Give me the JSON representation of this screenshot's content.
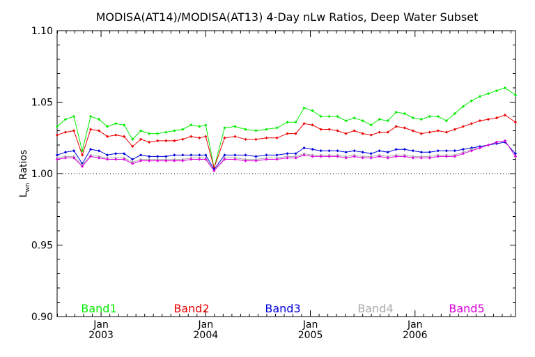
{
  "chart_data": {
    "type": "line",
    "title": "MODISA(AT14)/MODISA(AT13) 4-Day nLw Ratios, Deep Water Subset",
    "ylabel_main": "L",
    "ylabel_sub": "wn",
    "ylabel_rest": " Ratios",
    "ylim": [
      0.9,
      1.1
    ],
    "yticks": [
      "0.90",
      "0.95",
      "1.00",
      "1.05",
      "1.10"
    ],
    "xlim": [
      2002.58,
      2006.96
    ],
    "xticks": [
      {
        "x": 2003.0,
        "month": "Jan",
        "year": "2003"
      },
      {
        "x": 2004.0,
        "month": "Jan",
        "year": "2004"
      },
      {
        "x": 2005.0,
        "month": "Jan",
        "year": "2005"
      },
      {
        "x": 2006.0,
        "month": "Jan",
        "year": "2006"
      }
    ],
    "reference_line": 1.0,
    "grid": false,
    "legend_position": "bottom",
    "x": [
      2002.58,
      2002.66,
      2002.74,
      2002.82,
      2002.9,
      2002.98,
      2003.06,
      2003.14,
      2003.22,
      2003.3,
      2003.38,
      2003.46,
      2003.54,
      2003.62,
      2003.7,
      2003.78,
      2003.86,
      2003.94,
      2004.0,
      2004.08,
      2004.18,
      2004.28,
      2004.38,
      2004.48,
      2004.58,
      2004.68,
      2004.78,
      2004.86,
      2004.94,
      2005.02,
      2005.1,
      2005.18,
      2005.26,
      2005.34,
      2005.42,
      2005.5,
      2005.58,
      2005.66,
      2005.74,
      2005.82,
      2005.9,
      2005.98,
      2006.06,
      2006.14,
      2006.22,
      2006.3,
      2006.38,
      2006.46,
      2006.54,
      2006.62,
      2006.7,
      2006.78,
      2006.86,
      2006.96
    ],
    "series": [
      {
        "name": "Band1",
        "color": "#00ee00",
        "values": [
          1.033,
          1.038,
          1.04,
          1.016,
          1.04,
          1.038,
          1.033,
          1.035,
          1.034,
          1.024,
          1.03,
          1.028,
          1.028,
          1.029,
          1.03,
          1.031,
          1.034,
          1.033,
          1.034,
          1.004,
          1.032,
          1.033,
          1.031,
          1.03,
          1.031,
          1.032,
          1.036,
          1.036,
          1.046,
          1.044,
          1.04,
          1.04,
          1.04,
          1.037,
          1.039,
          1.037,
          1.034,
          1.038,
          1.037,
          1.043,
          1.042,
          1.039,
          1.038,
          1.04,
          1.04,
          1.037,
          1.042,
          1.047,
          1.051,
          1.054,
          1.056,
          1.058,
          1.06,
          1.055
        ]
      },
      {
        "name": "Band2",
        "color": "#ee0000",
        "values": [
          1.027,
          1.029,
          1.03,
          1.013,
          1.031,
          1.03,
          1.026,
          1.027,
          1.026,
          1.019,
          1.024,
          1.022,
          1.023,
          1.023,
          1.023,
          1.024,
          1.026,
          1.025,
          1.026,
          1.004,
          1.025,
          1.026,
          1.024,
          1.024,
          1.025,
          1.025,
          1.028,
          1.028,
          1.035,
          1.034,
          1.031,
          1.031,
          1.03,
          1.028,
          1.03,
          1.028,
          1.027,
          1.029,
          1.029,
          1.033,
          1.032,
          1.03,
          1.028,
          1.029,
          1.03,
          1.029,
          1.031,
          1.033,
          1.035,
          1.037,
          1.038,
          1.039,
          1.041,
          1.036
        ]
      },
      {
        "name": "Band3",
        "color": "#0000dd",
        "values": [
          1.013,
          1.015,
          1.016,
          1.007,
          1.017,
          1.016,
          1.013,
          1.014,
          1.014,
          1.01,
          1.013,
          1.012,
          1.012,
          1.012,
          1.013,
          1.013,
          1.013,
          1.013,
          1.013,
          1.003,
          1.013,
          1.013,
          1.013,
          1.012,
          1.013,
          1.013,
          1.014,
          1.014,
          1.018,
          1.017,
          1.016,
          1.016,
          1.016,
          1.015,
          1.016,
          1.015,
          1.014,
          1.016,
          1.015,
          1.017,
          1.017,
          1.016,
          1.015,
          1.015,
          1.016,
          1.016,
          1.016,
          1.017,
          1.018,
          1.019,
          1.02,
          1.021,
          1.022,
          1.014
        ]
      },
      {
        "name": "Band4",
        "color": "#aaaaaa",
        "values": [
          1.011,
          1.012,
          1.012,
          1.006,
          1.013,
          1.012,
          1.011,
          1.011,
          1.011,
          1.008,
          1.01,
          1.01,
          1.01,
          1.01,
          1.01,
          1.01,
          1.011,
          1.011,
          1.011,
          1.002,
          1.011,
          1.011,
          1.01,
          1.01,
          1.011,
          1.011,
          1.012,
          1.012,
          1.014,
          1.013,
          1.013,
          1.013,
          1.013,
          1.012,
          1.013,
          1.012,
          1.012,
          1.013,
          1.012,
          1.013,
          1.013,
          1.012,
          1.012,
          1.012,
          1.013,
          1.013,
          1.013,
          1.015,
          1.017,
          1.018,
          1.02,
          1.022,
          1.023,
          1.012
        ]
      },
      {
        "name": "Band5",
        "color": "#dd00dd",
        "values": [
          1.01,
          1.011,
          1.011,
          1.005,
          1.012,
          1.011,
          1.01,
          1.01,
          1.01,
          1.007,
          1.009,
          1.009,
          1.009,
          1.009,
          1.009,
          1.009,
          1.01,
          1.01,
          1.01,
          1.002,
          1.01,
          1.01,
          1.009,
          1.009,
          1.01,
          1.01,
          1.011,
          1.011,
          1.013,
          1.012,
          1.012,
          1.012,
          1.012,
          1.011,
          1.012,
          1.011,
          1.011,
          1.012,
          1.011,
          1.012,
          1.012,
          1.011,
          1.011,
          1.011,
          1.012,
          1.012,
          1.012,
          1.014,
          1.016,
          1.018,
          1.02,
          1.022,
          1.023,
          1.012
        ]
      }
    ]
  }
}
